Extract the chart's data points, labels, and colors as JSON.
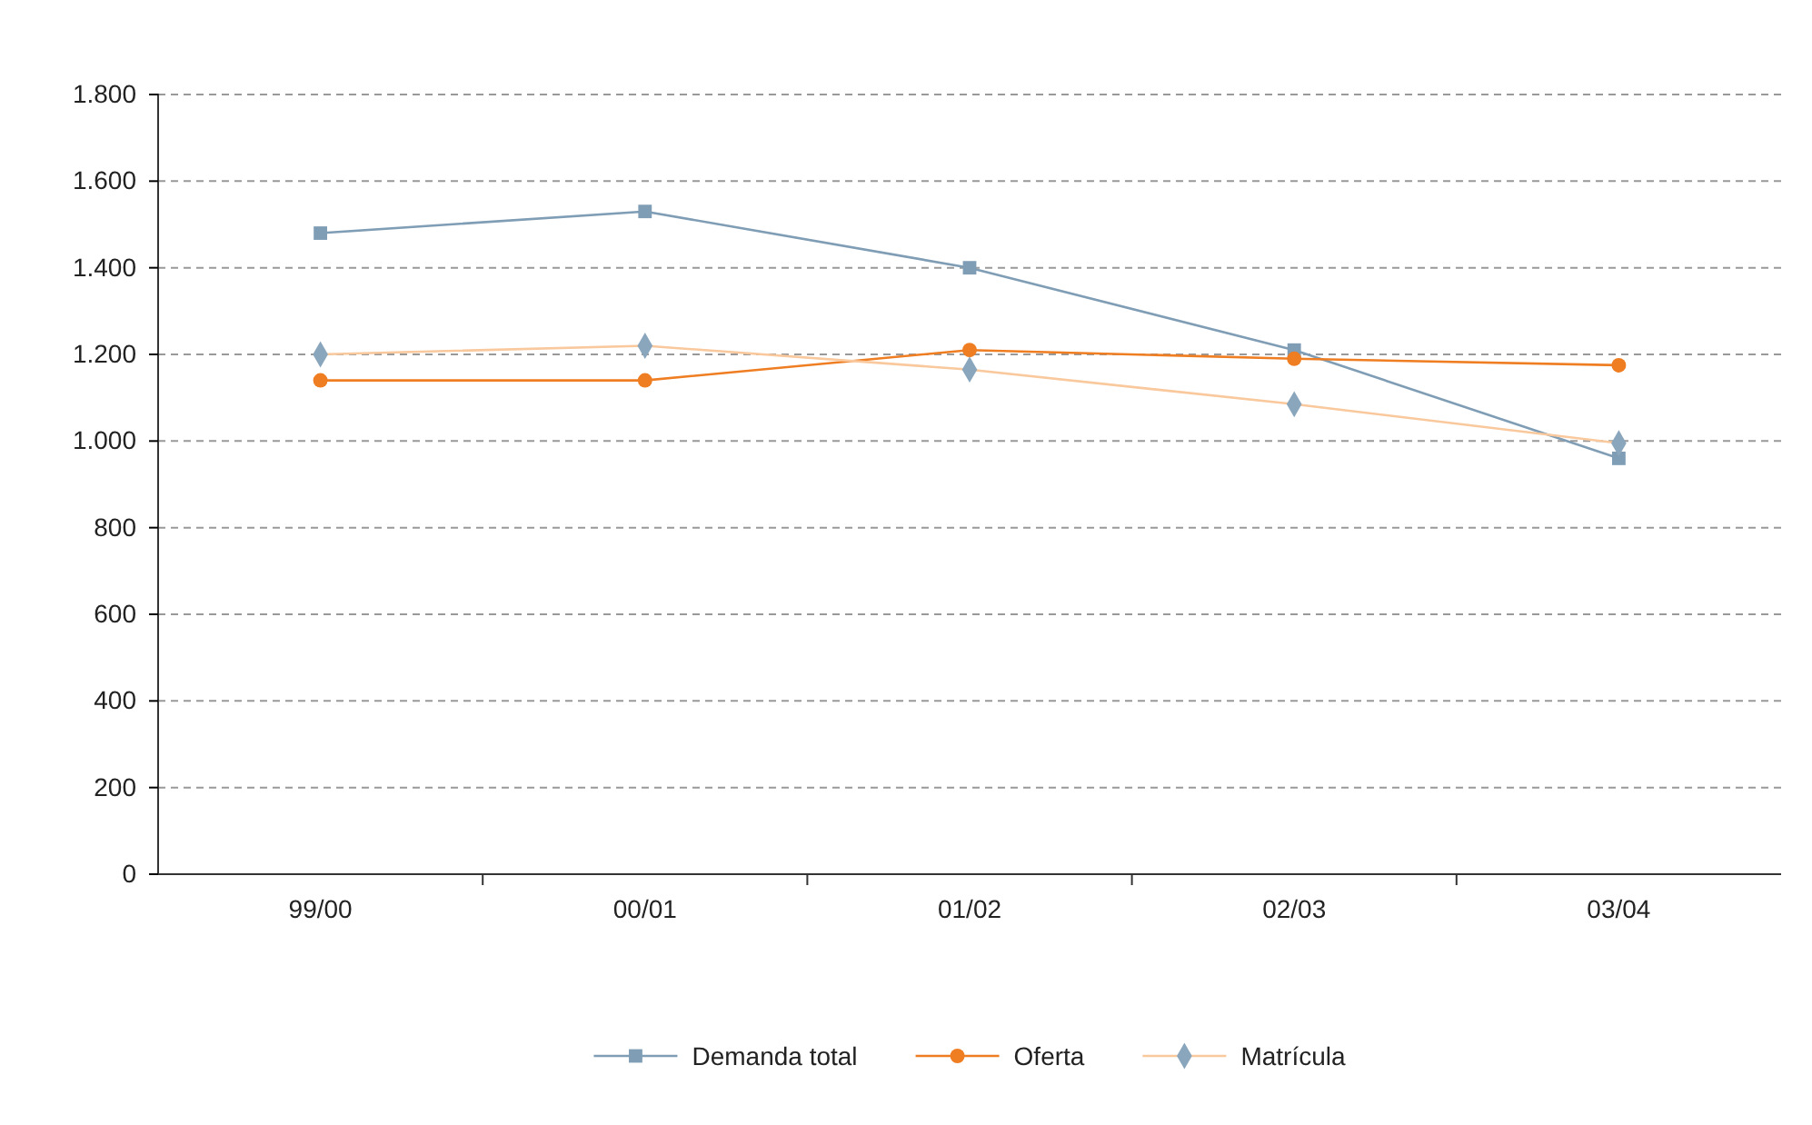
{
  "chart_data": {
    "type": "line",
    "categories": [
      "99/00",
      "00/01",
      "01/02",
      "02/03",
      "03/04"
    ],
    "ylim": [
      0,
      1800
    ],
    "yticks": [
      {
        "value": 0,
        "label": "0"
      },
      {
        "value": 200,
        "label": "200"
      },
      {
        "value": 400,
        "label": "400"
      },
      {
        "value": 600,
        "label": "600"
      },
      {
        "value": 800,
        "label": "800"
      },
      {
        "value": 1000,
        "label": "1.000"
      },
      {
        "value": 1200,
        "label": "1.200"
      },
      {
        "value": 1400,
        "label": "1.400"
      },
      {
        "value": 1600,
        "label": "1.600"
      },
      {
        "value": 1800,
        "label": "1.800"
      }
    ],
    "grid": "y",
    "legend": "bottom",
    "line_style": "solid",
    "series": [
      {
        "name": "Demanda total",
        "color": "#7f9db5",
        "marker": "square",
        "values": [
          1480,
          1530,
          1400,
          1210,
          960
        ]
      },
      {
        "name": "Oferta",
        "color": "#ef7d22",
        "marker": "circle",
        "values": [
          1140,
          1140,
          1210,
          1190,
          1175
        ]
      },
      {
        "name": "Matrícula",
        "color": "#f9c89c",
        "colors": [
          "#8aa6bd",
          "#8aa6bd",
          "#8aa6bd",
          "#8aa6bd",
          "#8aa6bd"
        ],
        "marker": "diamond",
        "values": [
          1200,
          1220,
          1165,
          1085,
          995
        ]
      }
    ]
  }
}
